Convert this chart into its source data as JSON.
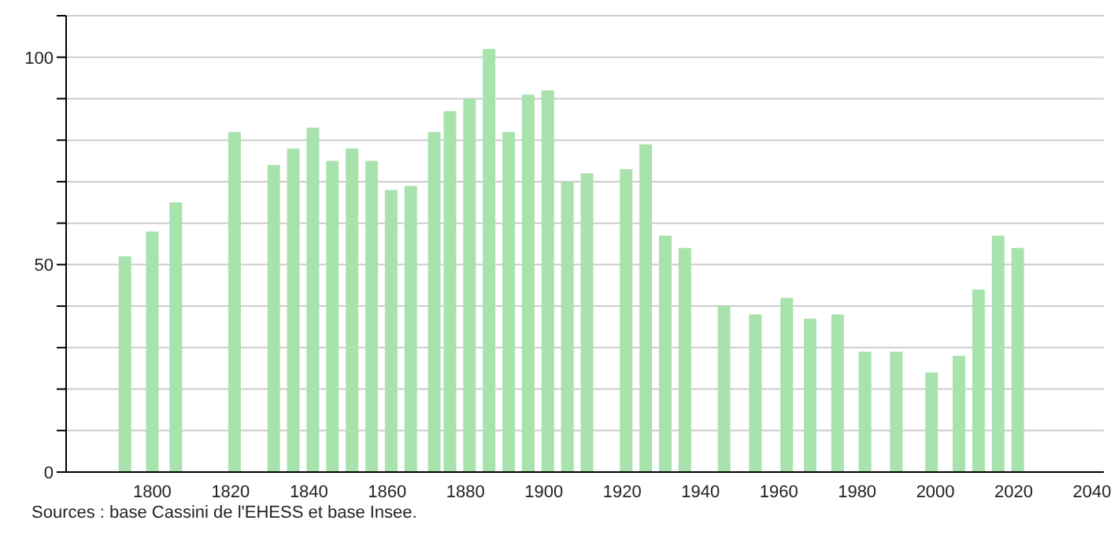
{
  "chart_data": {
    "type": "bar",
    "x": [
      1793,
      1800,
      1806,
      1821,
      1831,
      1836,
      1841,
      1846,
      1851,
      1856,
      1861,
      1866,
      1872,
      1876,
      1881,
      1886,
      1891,
      1896,
      1901,
      1906,
      1911,
      1921,
      1926,
      1931,
      1936,
      1946,
      1954,
      1962,
      1968,
      1975,
      1982,
      1990,
      1999,
      2006,
      2011,
      2016,
      2021
    ],
    "values": [
      52,
      58,
      65,
      82,
      74,
      78,
      83,
      75,
      78,
      75,
      68,
      69,
      82,
      87,
      90,
      102,
      82,
      91,
      92,
      70,
      72,
      73,
      79,
      57,
      54,
      40,
      38,
      42,
      37,
      38,
      29,
      29,
      24,
      28,
      44,
      57,
      54
    ],
    "color": "#a8e2ac",
    "xlim": [
      1778,
      2043
    ],
    "xticks": [
      1800,
      1820,
      1840,
      1860,
      1880,
      1900,
      1920,
      1940,
      1960,
      1980,
      2000,
      2020,
      2040
    ],
    "ylim": [
      0,
      110
    ],
    "yticks": [
      0,
      {
        "value": 10,
        "label": null
      },
      {
        "value": 20,
        "label": null
      },
      {
        "value": 30,
        "label": null
      },
      {
        "value": 40,
        "label": null
      },
      50,
      {
        "value": 60,
        "label": null
      },
      {
        "value": 70,
        "label": null
      },
      {
        "value": 80,
        "label": null
      },
      {
        "value": 90,
        "label": null
      },
      100,
      {
        "value": 110,
        "label": null
      }
    ],
    "grid": "y",
    "annotations": [
      "Sources : base Cassini de l'EHESS et base Insee."
    ]
  }
}
